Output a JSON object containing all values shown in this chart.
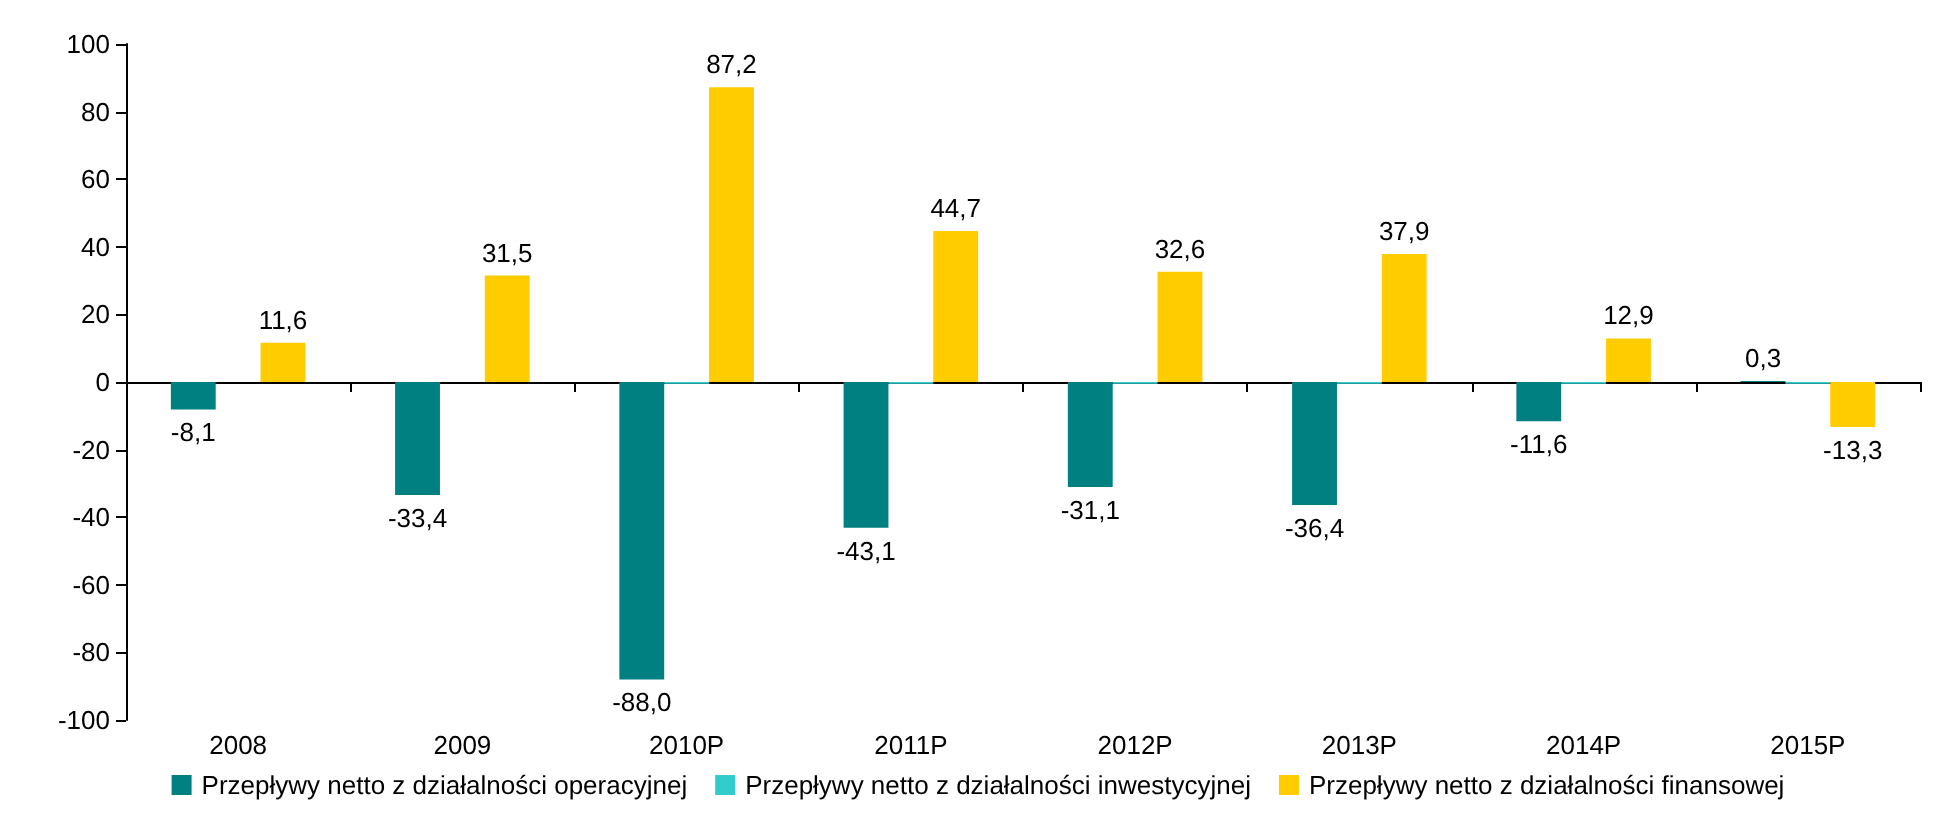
{
  "chart_data": {
    "type": "bar",
    "categories": [
      "2008",
      "2009",
      "2010P",
      "2011P",
      "2012P",
      "2013P",
      "2014P",
      "2015P"
    ],
    "series": [
      {
        "name": "Przepływy netto z działalności operacyjnej",
        "color": "#008080",
        "values": [
          -8.1,
          -33.4,
          -88.0,
          -43.1,
          -31.1,
          -36.4,
          -11.6,
          0.3
        ],
        "value_labels": [
          "-8,1",
          "-33,4",
          "-88,0",
          "-43,1",
          "-31,1",
          "-36,4",
          "-11,6",
          "0,3"
        ]
      },
      {
        "name": "Przepływy netto z działalności inwestycyjnej",
        "color": "#33cccc",
        "values": [
          0,
          0,
          -0.5,
          -0.5,
          -0.5,
          -0.5,
          -0.5,
          -0.5
        ]
      },
      {
        "name": "Przepływy netto z działalności finansowej",
        "color": "#ffcc00",
        "values": [
          11.6,
          31.5,
          87.2,
          44.7,
          32.6,
          37.9,
          12.9,
          -13.3
        ],
        "value_labels": [
          "11,6",
          "31,5",
          "87,2",
          "44,7",
          "32,6",
          "37,9",
          "12,9",
          "-13,3"
        ]
      }
    ],
    "ylim": [
      -100,
      100
    ],
    "yticks": [
      -100,
      -80,
      -60,
      -40,
      -20,
      0,
      20,
      40,
      60,
      80,
      100
    ],
    "legend": "bottom"
  }
}
